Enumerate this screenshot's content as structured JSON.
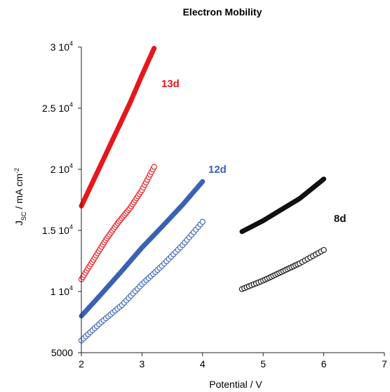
{
  "chart_data": {
    "type": "scatter",
    "title": "Electron Mobility",
    "xlabel": "Potential / V",
    "ylabel": {
      "main": "J",
      "sub": "SC",
      "unit": " / mA cm",
      "sup": "-2"
    },
    "xlim": [
      2,
      7
    ],
    "ylim": [
      5000,
      30000
    ],
    "x_ticks": [
      "2",
      "3",
      "4",
      "5",
      "6",
      "7"
    ],
    "y_ticks": [
      {
        "value": 5000,
        "label": "5000"
      },
      {
        "value": 10000,
        "base": "1 10",
        "exp": "4"
      },
      {
        "value": 15000,
        "base": "1.5 10",
        "exp": "4"
      },
      {
        "value": 20000,
        "base": "2 10",
        "exp": "4"
      },
      {
        "value": 25000,
        "base": "2.5 10",
        "exp": "4"
      },
      {
        "value": 30000,
        "base": "3 10",
        "exp": "4"
      }
    ],
    "series": [
      {
        "label": "13d",
        "color": "#e8161b",
        "marker": "filled",
        "x": [
          2.0,
          2.2,
          2.4,
          2.6,
          2.8,
          3.0,
          3.2
        ],
        "y": [
          17000,
          19100,
          21200,
          23300,
          25400,
          27700,
          29900
        ]
      },
      {
        "color": "#e8161b",
        "marker": "open",
        "x": [
          2.0,
          2.2,
          2.4,
          2.6,
          2.8,
          3.0,
          3.2
        ],
        "y": [
          11000,
          12600,
          14200,
          15600,
          16800,
          18300,
          20200
        ]
      },
      {
        "label": "12d",
        "color": "#3a62b3",
        "marker": "filled",
        "x": [
          2.0,
          2.33,
          2.67,
          3.0,
          3.33,
          3.67,
          4.0
        ],
        "y": [
          8000,
          9800,
          11700,
          13600,
          15300,
          17100,
          19000
        ]
      },
      {
        "color": "#3a62b3",
        "marker": "open",
        "x": [
          2.0,
          2.33,
          2.67,
          3.0,
          3.33,
          3.67,
          4.0
        ],
        "y": [
          6000,
          7500,
          8900,
          10600,
          12100,
          13800,
          15700
        ]
      },
      {
        "label": "8d",
        "color": "#111111",
        "marker": "filled",
        "x": [
          4.65,
          5.0,
          5.3,
          5.6,
          6.0
        ],
        "y": [
          14900,
          15800,
          16700,
          17600,
          19200
        ]
      },
      {
        "color": "#111111",
        "marker": "open",
        "x": [
          4.65,
          5.0,
          5.3,
          5.6,
          6.0
        ],
        "y": [
          10200,
          10900,
          11600,
          12300,
          13400
        ]
      }
    ]
  }
}
